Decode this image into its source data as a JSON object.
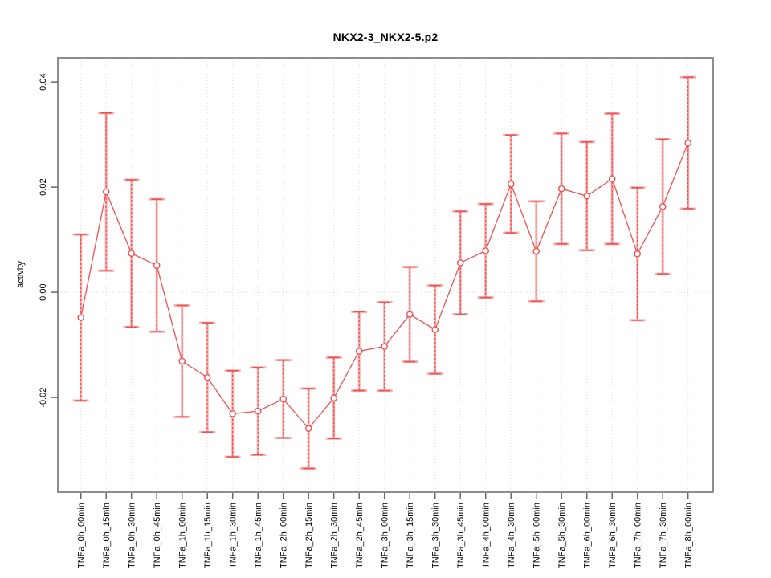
{
  "chart_data": {
    "type": "line",
    "title": "NKX2-3_NKX2-5.p2",
    "xlabel": "",
    "ylabel": "activity",
    "ylim": [
      -0.038,
      0.0446
    ],
    "yticks": [
      -0.02,
      0.0,
      0.02,
      0.04
    ],
    "ytick_labels": [
      "-0.02",
      "0.00",
      "0.02",
      "0.04"
    ],
    "grid": "vertical-dotted-per-category, dotted-zero-line",
    "legend_position": "none",
    "marker": "open-circle",
    "categories": [
      "TNFa_0h_00min",
      "TNFa_0h_15min",
      "TNFa_0h_30min",
      "TNFa_0h_45min",
      "TNFa_1h_00min",
      "TNFa_1h_15min",
      "TNFa_1h_30min",
      "TNFa_1h_45min",
      "TNFa_2h_00min",
      "TNFa_2h_15min",
      "TNFa_2h_30min",
      "TNFa_2h_45min",
      "TNFa_3h_00min",
      "TNFa_3h_15min",
      "TNFa_3h_30min",
      "TNFa_3h_45min",
      "TNFa_4h_00min",
      "TNFa_4h_30min",
      "TNFa_5h_00min",
      "TNFa_5h_30min",
      "TNFa_6h_00min",
      "TNFa_6h_30min",
      "TNFa_7h_00min",
      "TNFa_7h_30min",
      "TNFa_8h_00min"
    ],
    "series": [
      {
        "name": "activity",
        "values": [
          -0.0048,
          0.0191,
          0.0074,
          0.0051,
          -0.0131,
          -0.0162,
          -0.0231,
          -0.0226,
          -0.0203,
          -0.0259,
          -0.0201,
          -0.0112,
          -0.0103,
          -0.0042,
          -0.0071,
          0.0056,
          0.0079,
          0.0206,
          0.0078,
          0.0197,
          0.0183,
          0.0216,
          0.0073,
          0.0163,
          0.0284
        ],
        "errors": [
          0.0158,
          0.015,
          0.014,
          0.0126,
          0.0106,
          0.0104,
          0.0082,
          0.0083,
          0.0074,
          0.0076,
          0.0077,
          0.0075,
          0.0084,
          0.009,
          0.0084,
          0.0098,
          0.0089,
          0.0093,
          0.0095,
          0.0105,
          0.0103,
          0.0124,
          0.0126,
          0.0128,
          0.0125
        ]
      }
    ],
    "colors": {
      "line": "#EF5252",
      "error_bar": "#EF5252",
      "error_band": "#F8AEAE",
      "marker_fill": "#FFFFFF",
      "grid": "#DCDCDC",
      "zero_line": "#D8D8D8",
      "border": "#8E8E8E",
      "tick": "#666666",
      "text": "#000000"
    }
  }
}
